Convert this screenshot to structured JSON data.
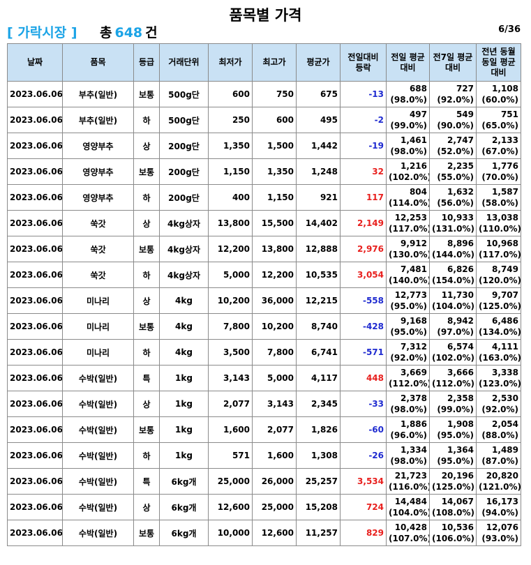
{
  "title": "품목별 가격",
  "market_label": "[ 가락시장 ]",
  "total_prefix": "총",
  "total_count": "648",
  "total_suffix": "건",
  "page_indicator": "6/36",
  "colors": {
    "header_bg": "#c9e1f4",
    "accent": "#1aa3e6",
    "increase": "#e8201e",
    "decrease": "#1f2bd0"
  },
  "headers": [
    "날짜",
    "품목",
    "등급",
    "거래단위",
    "최저가",
    "최고가",
    "평균가",
    "전일대비 등락",
    "전일 평균대비",
    "전7일 평균대비",
    "전년 동월동일 평균대비"
  ],
  "rows": [
    {
      "date": "2023.06.06",
      "item": "부추(일반)",
      "grade": "보통",
      "unit": "500g단",
      "min": "600",
      "max": "750",
      "avg": "675",
      "change": "-13",
      "dir": "down",
      "prev_day": "688",
      "prev_day_pct": "(98.0%)",
      "prev_week": "727",
      "prev_week_pct": "(92.0%)",
      "prev_year": "1,108",
      "prev_year_pct": "(60.0%)"
    },
    {
      "date": "2023.06.06",
      "item": "부추(일반)",
      "grade": "하",
      "unit": "500g단",
      "min": "250",
      "max": "600",
      "avg": "495",
      "change": "-2",
      "dir": "down",
      "prev_day": "497",
      "prev_day_pct": "(99.0%)",
      "prev_week": "549",
      "prev_week_pct": "(90.0%)",
      "prev_year": "751",
      "prev_year_pct": "(65.0%)"
    },
    {
      "date": "2023.06.06",
      "item": "영양부추",
      "grade": "상",
      "unit": "200g단",
      "min": "1,350",
      "max": "1,500",
      "avg": "1,442",
      "change": "-19",
      "dir": "down",
      "prev_day": "1,461",
      "prev_day_pct": "(98.0%)",
      "prev_week": "2,747",
      "prev_week_pct": "(52.0%)",
      "prev_year": "2,133",
      "prev_year_pct": "(67.0%)"
    },
    {
      "date": "2023.06.06",
      "item": "영양부추",
      "grade": "보통",
      "unit": "200g단",
      "min": "1,150",
      "max": "1,350",
      "avg": "1,248",
      "change": "32",
      "dir": "up",
      "prev_day": "1,216",
      "prev_day_pct": "(102.0%)",
      "prev_week": "2,235",
      "prev_week_pct": "(55.0%)",
      "prev_year": "1,776",
      "prev_year_pct": "(70.0%)"
    },
    {
      "date": "2023.06.06",
      "item": "영양부추",
      "grade": "하",
      "unit": "200g단",
      "min": "400",
      "max": "1,150",
      "avg": "921",
      "change": "117",
      "dir": "up",
      "prev_day": "804",
      "prev_day_pct": "(114.0%)",
      "prev_week": "1,632",
      "prev_week_pct": "(56.0%)",
      "prev_year": "1,587",
      "prev_year_pct": "(58.0%)"
    },
    {
      "date": "2023.06.06",
      "item": "쑥갓",
      "grade": "상",
      "unit": "4kg상자",
      "min": "13,800",
      "max": "15,500",
      "avg": "14,402",
      "change": "2,149",
      "dir": "up",
      "prev_day": "12,253",
      "prev_day_pct": "(117.0%)",
      "prev_week": "10,933",
      "prev_week_pct": "(131.0%)",
      "prev_year": "13,038",
      "prev_year_pct": "(110.0%)"
    },
    {
      "date": "2023.06.06",
      "item": "쑥갓",
      "grade": "보통",
      "unit": "4kg상자",
      "min": "12,200",
      "max": "13,800",
      "avg": "12,888",
      "change": "2,976",
      "dir": "up",
      "prev_day": "9,912",
      "prev_day_pct": "(130.0%)",
      "prev_week": "8,896",
      "prev_week_pct": "(144.0%)",
      "prev_year": "10,968",
      "prev_year_pct": "(117.0%)"
    },
    {
      "date": "2023.06.06",
      "item": "쑥갓",
      "grade": "하",
      "unit": "4kg상자",
      "min": "5,000",
      "max": "12,200",
      "avg": "10,535",
      "change": "3,054",
      "dir": "up",
      "prev_day": "7,481",
      "prev_day_pct": "(140.0%)",
      "prev_week": "6,826",
      "prev_week_pct": "(154.0%)",
      "prev_year": "8,749",
      "prev_year_pct": "(120.0%)"
    },
    {
      "date": "2023.06.06",
      "item": "미나리",
      "grade": "상",
      "unit": "4kg",
      "min": "10,200",
      "max": "36,000",
      "avg": "12,215",
      "change": "-558",
      "dir": "down",
      "prev_day": "12,773",
      "prev_day_pct": "(95.0%)",
      "prev_week": "11,730",
      "prev_week_pct": "(104.0%)",
      "prev_year": "9,707",
      "prev_year_pct": "(125.0%)"
    },
    {
      "date": "2023.06.06",
      "item": "미나리",
      "grade": "보통",
      "unit": "4kg",
      "min": "7,800",
      "max": "10,200",
      "avg": "8,740",
      "change": "-428",
      "dir": "down",
      "prev_day": "9,168",
      "prev_day_pct": "(95.0%)",
      "prev_week": "8,942",
      "prev_week_pct": "(97.0%)",
      "prev_year": "6,486",
      "prev_year_pct": "(134.0%)"
    },
    {
      "date": "2023.06.06",
      "item": "미나리",
      "grade": "하",
      "unit": "4kg",
      "min": "3,500",
      "max": "7,800",
      "avg": "6,741",
      "change": "-571",
      "dir": "down",
      "prev_day": "7,312",
      "prev_day_pct": "(92.0%)",
      "prev_week": "6,574",
      "prev_week_pct": "(102.0%)",
      "prev_year": "4,111",
      "prev_year_pct": "(163.0%)"
    },
    {
      "date": "2023.06.06",
      "item": "수박(일반)",
      "grade": "특",
      "unit": "1kg",
      "min": "3,143",
      "max": "5,000",
      "avg": "4,117",
      "change": "448",
      "dir": "up",
      "prev_day": "3,669",
      "prev_day_pct": "(112.0%)",
      "prev_week": "3,666",
      "prev_week_pct": "(112.0%)",
      "prev_year": "3,338",
      "prev_year_pct": "(123.0%)"
    },
    {
      "date": "2023.06.06",
      "item": "수박(일반)",
      "grade": "상",
      "unit": "1kg",
      "min": "2,077",
      "max": "3,143",
      "avg": "2,345",
      "change": "-33",
      "dir": "down",
      "prev_day": "2,378",
      "prev_day_pct": "(98.0%)",
      "prev_week": "2,358",
      "prev_week_pct": "(99.0%)",
      "prev_year": "2,530",
      "prev_year_pct": "(92.0%)"
    },
    {
      "date": "2023.06.06",
      "item": "수박(일반)",
      "grade": "보통",
      "unit": "1kg",
      "min": "1,600",
      "max": "2,077",
      "avg": "1,826",
      "change": "-60",
      "dir": "down",
      "prev_day": "1,886",
      "prev_day_pct": "(96.0%)",
      "prev_week": "1,908",
      "prev_week_pct": "(95.0%)",
      "prev_year": "2,054",
      "prev_year_pct": "(88.0%)"
    },
    {
      "date": "2023.06.06",
      "item": "수박(일반)",
      "grade": "하",
      "unit": "1kg",
      "min": "571",
      "max": "1,600",
      "avg": "1,308",
      "change": "-26",
      "dir": "down",
      "prev_day": "1,334",
      "prev_day_pct": "(98.0%)",
      "prev_week": "1,364",
      "prev_week_pct": "(95.0%)",
      "prev_year": "1,489",
      "prev_year_pct": "(87.0%)"
    },
    {
      "date": "2023.06.06",
      "item": "수박(일반)",
      "grade": "특",
      "unit": "6kg개",
      "min": "25,000",
      "max": "26,000",
      "avg": "25,257",
      "change": "3,534",
      "dir": "up",
      "prev_day": "21,723",
      "prev_day_pct": "(116.0%)",
      "prev_week": "20,196",
      "prev_week_pct": "(125.0%)",
      "prev_year": "20,820",
      "prev_year_pct": "(121.0%)"
    },
    {
      "date": "2023.06.06",
      "item": "수박(일반)",
      "grade": "상",
      "unit": "6kg개",
      "min": "12,600",
      "max": "25,000",
      "avg": "15,208",
      "change": "724",
      "dir": "up",
      "prev_day": "14,484",
      "prev_day_pct": "(104.0%)",
      "prev_week": "14,067",
      "prev_week_pct": "(108.0%)",
      "prev_year": "16,173",
      "prev_year_pct": "(94.0%)"
    },
    {
      "date": "2023.06.06",
      "item": "수박(일반)",
      "grade": "보통",
      "unit": "6kg개",
      "min": "10,000",
      "max": "12,600",
      "avg": "11,257",
      "change": "829",
      "dir": "up",
      "prev_day": "10,428",
      "prev_day_pct": "(107.0%)",
      "prev_week": "10,536",
      "prev_week_pct": "(106.0%)",
      "prev_year": "12,076",
      "prev_year_pct": "(93.0%)"
    }
  ]
}
